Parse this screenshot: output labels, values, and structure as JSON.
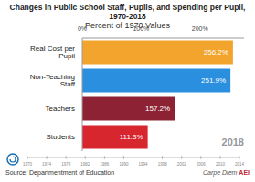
{
  "chart_data": {
    "type": "bar",
    "orientation": "horizontal",
    "title": "Changes in Public School Staff, Pupils, and Spending per Pupil, 1970-2018",
    "subtitle": "Percent of 1970 Values",
    "categories": [
      "Real Cost per Pupil",
      "Non-Teaching Staff",
      "Teachers",
      "Students"
    ],
    "values": [
      256.2,
      251.9,
      157.2,
      111.3
    ],
    "value_labels": [
      "256.2%",
      "251.9%",
      "157.2%",
      "111.3%"
    ],
    "colors": [
      "#f2a42c",
      "#2b8fe0",
      "#8c2233",
      "#d8262f"
    ],
    "xlim": [
      0,
      275
    ],
    "xticks": [
      {
        "value": 0,
        "label": "0%"
      },
      {
        "value": 100,
        "label": "100%"
      },
      {
        "value": 200,
        "label": "200%"
      }
    ],
    "data_labels": true,
    "grid": false,
    "annotations": [
      "2018"
    ],
    "source": "Source: Departmentment of Education",
    "branding": [
      "Carpe Diem",
      "AEI"
    ],
    "timeline_years": [
      1970,
      1974,
      1978,
      1982,
      1986,
      1990,
      1994,
      1998,
      2002,
      2006,
      2010,
      2014
    ]
  }
}
